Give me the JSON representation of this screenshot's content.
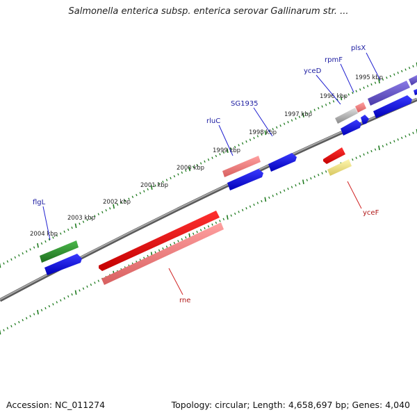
{
  "title": "Salmonella enterica subsp. enterica serovar Gallinarum str. ...",
  "footer": {
    "accession": "Accession: NC_011274",
    "summary": "Topology: circular; Length: 4,658,697 bp; Genes: 4,040"
  },
  "colors": {
    "backbone": "#8a8a8a",
    "tick": "#1e7a1e",
    "label_forward": "#1a1aa0",
    "label_reverse": "#b01818",
    "leader_forward": "#2020d0",
    "leader_reverse": "#d02020"
  },
  "map": {
    "kbp_labels": [
      "2004 kbp",
      "2003 kbp",
      "2002 kbp",
      "2001 kbp",
      "2000 kbp",
      "1999 kbp",
      "1998 kbp",
      "1997 kbp",
      "1996 kbp",
      "1995 kbp"
    ],
    "gene_labels": [
      {
        "text": "flgL",
        "strand": "forward"
      },
      {
        "text": "rluC",
        "strand": "forward"
      },
      {
        "text": "SG1935",
        "strand": "forward"
      },
      {
        "text": "yceD",
        "strand": "forward"
      },
      {
        "text": "rpmF",
        "strand": "forward"
      },
      {
        "text": "plsX",
        "strand": "forward"
      },
      {
        "text": "yceF",
        "strand": "reverse"
      },
      {
        "text": "rne",
        "strand": "reverse"
      }
    ]
  }
}
